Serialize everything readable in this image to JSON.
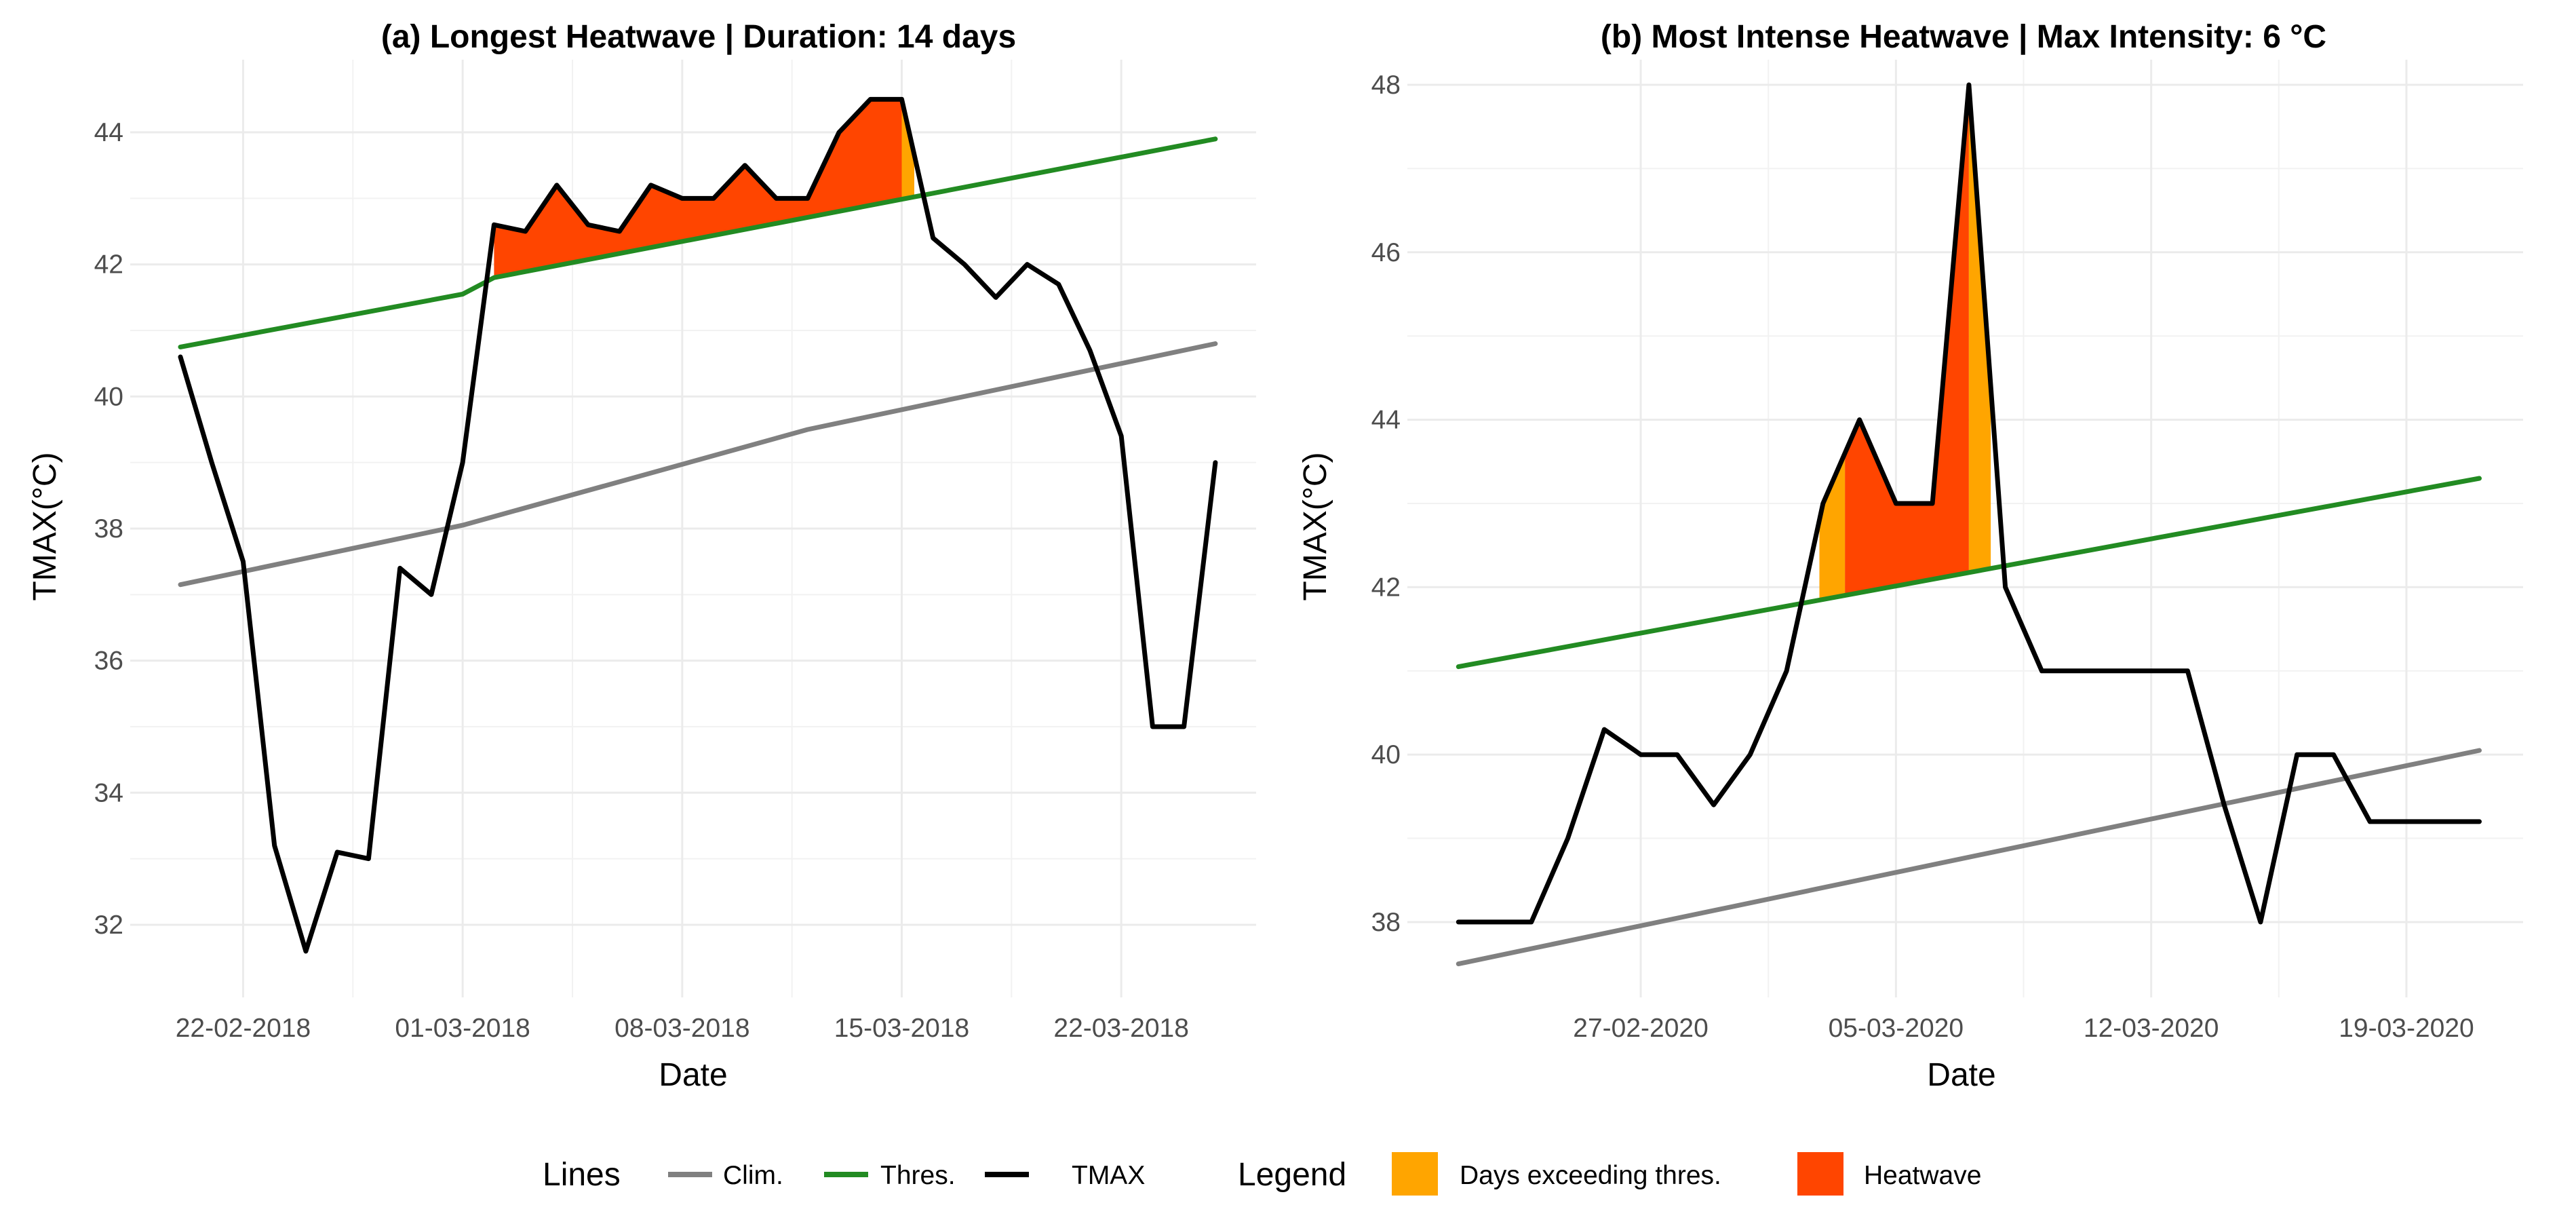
{
  "chart_data": [
    {
      "type": "line",
      "title": "(a) Longest Heatwave | Duration: 14  days",
      "xlabel": "Date",
      "ylabel": "TMAX(°C)",
      "x_start": "2018-02-20",
      "xlim_days": [
        -1.6,
        34.3
      ],
      "ylim": [
        30.9,
        45.1
      ],
      "yticks": [
        32,
        34,
        36,
        38,
        40,
        42,
        44
      ],
      "xticks": [
        {
          "day": 2,
          "label": "22-02-2018"
        },
        {
          "day": 9,
          "label": "01-03-2018"
        },
        {
          "day": 16,
          "label": "08-03-2018"
        },
        {
          "day": 23,
          "label": "15-03-2018"
        },
        {
          "day": 30,
          "label": "22-03-2018"
        }
      ],
      "grid": true,
      "series": [
        {
          "name": "Clim.",
          "color": "#808080",
          "days": [
            0,
            9,
            20,
            33
          ],
          "values": [
            37.15,
            38.05,
            39.5,
            40.8
          ]
        },
        {
          "name": "Thres.",
          "color": "#228B22",
          "days": [
            0,
            9,
            10,
            33
          ],
          "values": [
            40.75,
            41.55,
            41.8,
            43.9
          ]
        },
        {
          "name": "TMAX",
          "color": "#000000",
          "days": [
            0,
            1,
            2,
            3,
            4,
            5,
            6,
            7,
            8,
            9,
            10,
            11,
            12,
            13,
            14,
            15,
            16,
            17,
            18,
            19,
            20,
            21,
            22,
            23,
            24,
            25,
            26,
            27,
            28,
            29,
            30,
            31,
            32,
            33
          ],
          "values": [
            40.6,
            39.0,
            37.5,
            33.2,
            31.6,
            33.1,
            33.0,
            37.4,
            37.0,
            39.0,
            42.6,
            42.5,
            43.2,
            42.6,
            42.5,
            43.2,
            43.0,
            43.0,
            43.5,
            43.0,
            43.0,
            44.0,
            44.5,
            44.5,
            42.4,
            42.0,
            41.5,
            42.0,
            41.7,
            40.7,
            39.4,
            35.0,
            35.0,
            39.0
          ]
        }
      ],
      "heatwave_days": [
        10,
        23
      ],
      "exceed_days": [
        23,
        23.4
      ]
    },
    {
      "type": "line",
      "title": "(b) Most Intense Heatwave | Max Intensity: 6 °C",
      "xlabel": "Date",
      "ylabel": "TMAX(°C)",
      "x_start": "2020-02-22",
      "xlim_days": [
        -1.4,
        29.2
      ],
      "ylim": [
        37.1,
        48.3
      ],
      "yticks": [
        38,
        40,
        42,
        44,
        46,
        48
      ],
      "xticks": [
        {
          "day": 5,
          "label": "27-02-2020"
        },
        {
          "day": 12,
          "label": "05-03-2020"
        },
        {
          "day": 19,
          "label": "12-03-2020"
        },
        {
          "day": 26,
          "label": "19-03-2020"
        }
      ],
      "grid": true,
      "series": [
        {
          "name": "Clim.",
          "color": "#808080",
          "days": [
            0,
            28
          ],
          "values": [
            37.5,
            40.05
          ]
        },
        {
          "name": "Thres.",
          "color": "#228B22",
          "days": [
            0,
            28
          ],
          "values": [
            41.05,
            43.3
          ]
        },
        {
          "name": "TMAX",
          "color": "#000000",
          "days": [
            0,
            1,
            2,
            3,
            4,
            5,
            6,
            7,
            8,
            9,
            10,
            11,
            12,
            13,
            14,
            15,
            16,
            17,
            18,
            19,
            20,
            21,
            22,
            23,
            24,
            25,
            26,
            27,
            28
          ],
          "values": [
            38.0,
            38.0,
            38.0,
            39.0,
            40.3,
            40.0,
            40.0,
            39.4,
            40.0,
            41.0,
            43.0,
            44.0,
            43.0,
            43.0,
            48.0,
            42.0,
            41.0,
            41.0,
            41.0,
            41.0,
            41.0,
            39.4,
            38.0,
            40.0,
            40.0,
            39.2,
            39.2,
            39.2,
            39.2
          ]
        }
      ],
      "heatwave_days": [
        10.6,
        14
      ],
      "exceed_days": [
        [
          9.9,
          10.6
        ],
        [
          14,
          14.6
        ]
      ]
    }
  ],
  "legend": {
    "lines_title": "Lines",
    "lines": [
      {
        "label": "Clim.",
        "color": "#808080"
      },
      {
        "label": "Thres.",
        "color": "#228B22"
      },
      {
        "label": "TMAX",
        "color": "#000000"
      }
    ],
    "fill_title": "Legend",
    "fills": [
      {
        "label": "Days exceeding thres.",
        "color": "#FFA500"
      },
      {
        "label": "Heatwave",
        "color": "#FF4500"
      }
    ]
  }
}
